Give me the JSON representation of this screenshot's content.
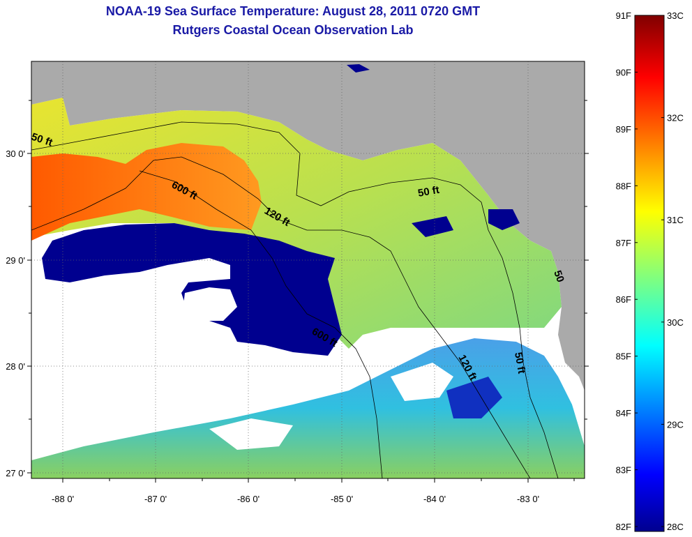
{
  "header": {
    "title": "NOAA-19 Sea Surface Temperature:  August 28, 2011 0720 GMT",
    "subtitle": "Rutgers Coastal Ocean Observation Lab"
  },
  "map": {
    "lon_ticks": [
      "-88 0'",
      "-87 0'",
      "-86 0'",
      "-85 0'",
      "-84 0'",
      "-83 0'"
    ],
    "lat_ticks": [
      "30 0'",
      "29 0'",
      "28 0'",
      "27 0'"
    ],
    "contour_labels": [
      "50 ft",
      "600 ft",
      "120 ft",
      "50 ft",
      "600 ft",
      "120 ft",
      "50 ft",
      "50"
    ],
    "colors": {
      "land": "#aaaaaa",
      "cloud": "#ffffff",
      "cold": "#00008f",
      "warm": "#ff6a00"
    }
  },
  "colorbar": {
    "fahrenheit": [
      "91F",
      "90F",
      "89F",
      "88F",
      "87F",
      "86F",
      "85F",
      "84F",
      "83F",
      "82F"
    ],
    "celsius": [
      "33C",
      "32C",
      "31C",
      "30C",
      "29C",
      "28C"
    ],
    "colormap": "jet"
  }
}
